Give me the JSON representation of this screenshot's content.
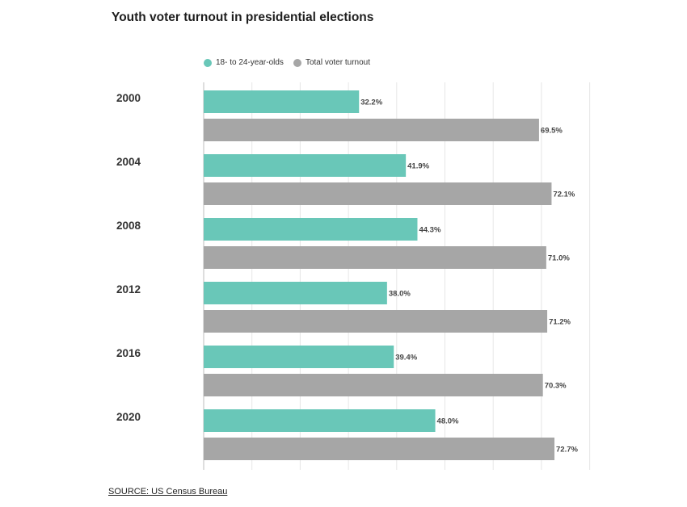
{
  "title": "Youth voter turnout in presidential elections",
  "source": "SOURCE: US Census Bureau",
  "colors": {
    "youth": "#69c7b8",
    "total": "#a6a6a6",
    "grid": "#e6e6e6",
    "axis": "#bdbdbd"
  },
  "chart_data": {
    "type": "bar",
    "orientation": "horizontal",
    "categories": [
      "2000",
      "2004",
      "2008",
      "2012",
      "2016",
      "2020"
    ],
    "series": [
      {
        "name": "18- to 24-year-olds",
        "values": [
          32.2,
          41.9,
          44.3,
          38.0,
          39.4,
          48.0
        ],
        "labels": [
          "32.2%",
          "41.9%",
          "44.3%",
          "38.0%",
          "39.4%",
          "48.0%"
        ]
      },
      {
        "name": "Total voter turnout",
        "values": [
          69.5,
          72.1,
          71.0,
          71.2,
          70.3,
          72.7
        ],
        "labels": [
          "69.5%",
          "72.1%",
          "71.0%",
          "71.2%",
          "70.3%",
          "72.7%"
        ]
      }
    ],
    "xlim": [
      0,
      80
    ],
    "grid": true,
    "legend": "top"
  }
}
